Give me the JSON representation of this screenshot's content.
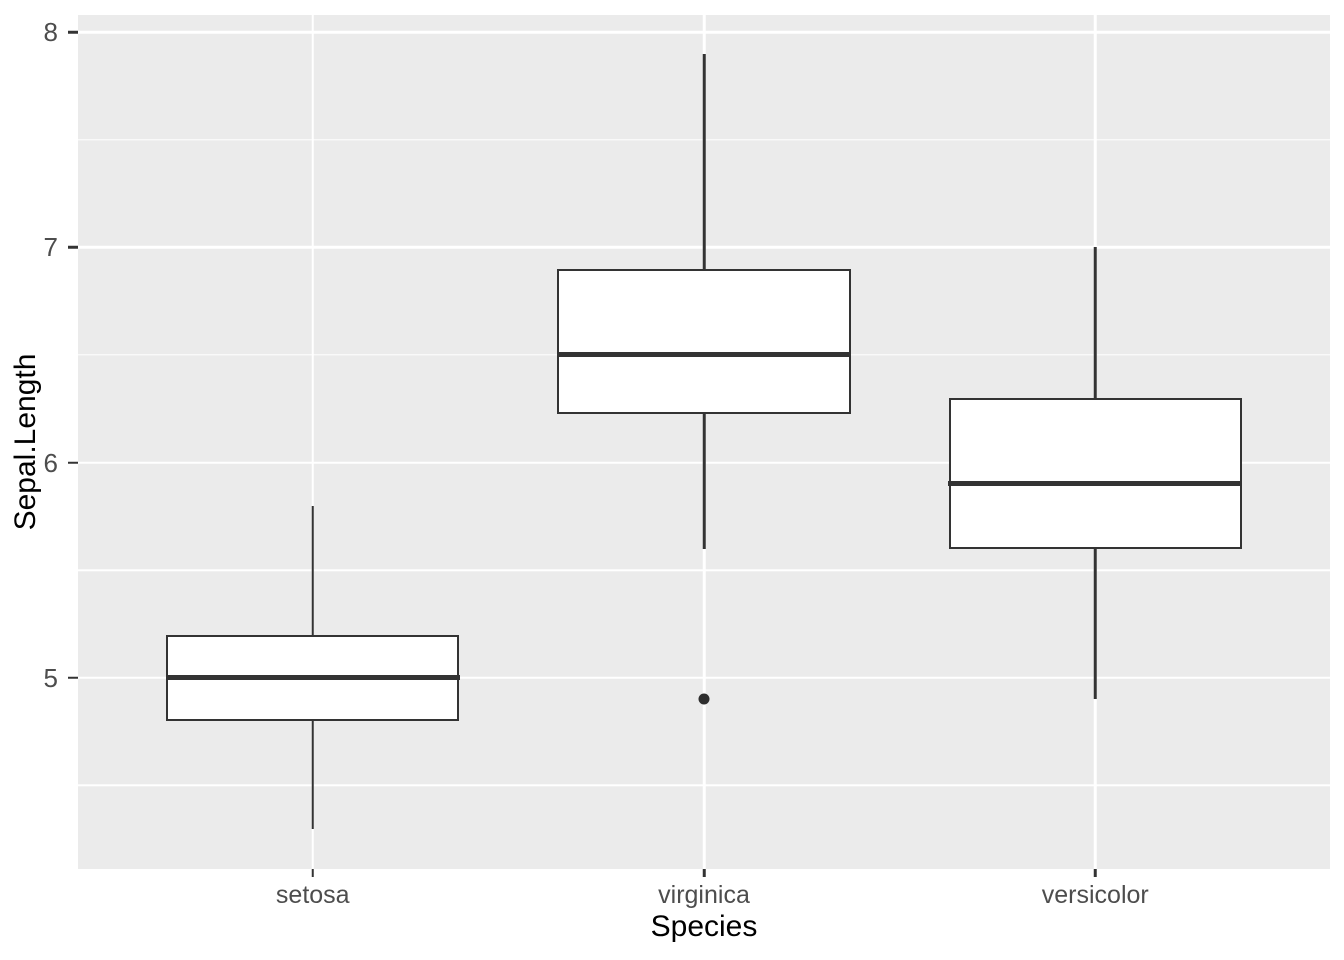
{
  "figure": {
    "y_axis_title": "Sepal.Length",
    "x_axis_title": "Species"
  },
  "chart_data": {
    "type": "boxplot",
    "title": "",
    "xlabel": "Species",
    "ylabel": "Sepal.Length",
    "categories": [
      "setosa",
      "virginica",
      "versicolor"
    ],
    "series": [
      {
        "name": "setosa",
        "whisker_low": 4.3,
        "q1": 4.8,
        "median": 5.0,
        "q3": 5.2,
        "whisker_high": 5.8,
        "outliers": []
      },
      {
        "name": "virginica",
        "whisker_low": 5.6,
        "q1": 6.225,
        "median": 6.5,
        "q3": 6.9,
        "whisker_high": 7.9,
        "outliers": [
          4.9
        ]
      },
      {
        "name": "versicolor",
        "whisker_low": 4.9,
        "q1": 5.6,
        "median": 5.9,
        "q3": 6.3,
        "whisker_high": 7.0,
        "outliers": []
      }
    ],
    "ylim": [
      4.112,
      8.08
    ],
    "y_major_ticks": [
      8,
      7,
      6,
      5
    ],
    "y_minor_ticks": [
      7.5,
      6.5,
      5.5,
      4.5
    ],
    "box_width_fraction": 0.75,
    "grid": "horizontal major+minor, vertical major at categories",
    "legend": "none",
    "colors": {
      "panel_background": "#EBEBEB",
      "gridline": "#FFFFFF",
      "box_outline": "#333333",
      "box_fill": "#FFFFFF",
      "median": "#333333",
      "outlier": "#2E2E2E",
      "tick_mark": "#333333",
      "tick_label": "#4D4D4D",
      "axis_title": "#000000"
    }
  }
}
